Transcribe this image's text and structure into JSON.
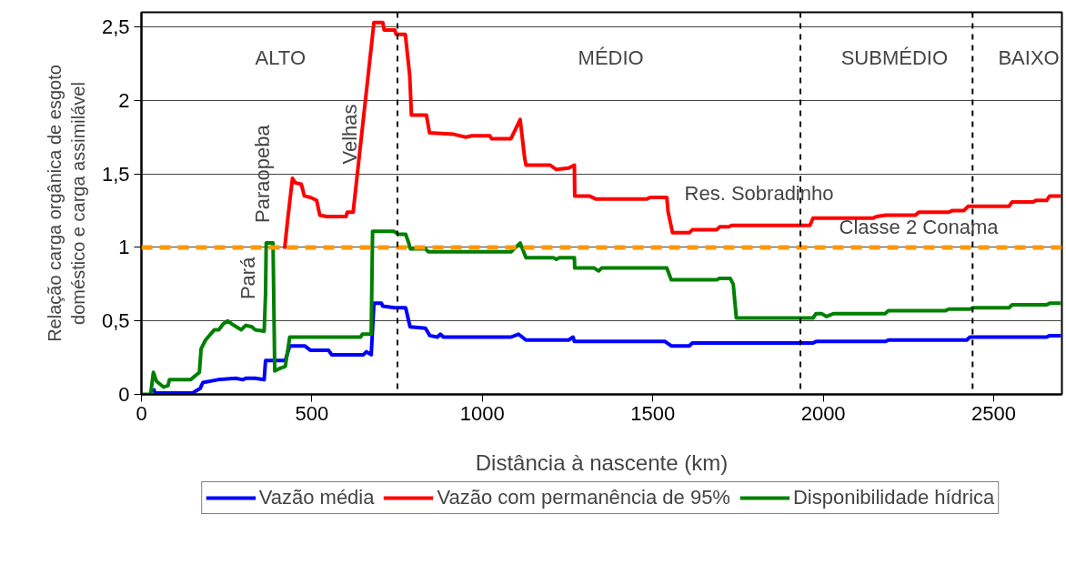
{
  "chart_data": {
    "type": "line",
    "xlabel": "Distância à nascente (km)",
    "ylabel": "Relação carga orgânica de esgoto\ndoméstico e carga assimilável",
    "xlim": [
      0,
      2700
    ],
    "xticks": [
      0,
      500,
      1000,
      1500,
      2000,
      2500
    ],
    "ylim": [
      0,
      2.6
    ],
    "yticks": [
      0,
      {
        "value": 0.5,
        "label": "0,5"
      },
      1,
      {
        "value": 1.5,
        "label": "1,5"
      },
      2,
      {
        "value": 2.5,
        "label": "2,5"
      }
    ],
    "grid": "y",
    "legend": "bottom",
    "marker": "none",
    "line_style": "solid",
    "series": [
      {
        "name": "Vazão média",
        "color": "#0000ff",
        "x": [
          35,
          40,
          150,
          172,
          180,
          224,
          276,
          298,
          306,
          333,
          360,
          364,
          422,
          435,
          479,
          496,
          549,
          558,
          651,
          660,
          674,
          682,
          704,
          708,
          743,
          775,
          788,
          833,
          846,
          868,
          877,
          886,
          1084,
          1106,
          1128,
          1253,
          1266,
          1270,
          1536,
          1554,
          1607,
          1616,
          1970,
          1979,
          2183,
          2191,
          2421,
          2430,
          2655,
          2664,
          2697
        ],
        "values": [
          0.04,
          0.01,
          0.01,
          0.04,
          0.08,
          0.1,
          0.11,
          0.1,
          0.11,
          0.11,
          0.1,
          0.23,
          0.23,
          0.33,
          0.33,
          0.3,
          0.3,
          0.27,
          0.27,
          0.29,
          0.27,
          0.62,
          0.62,
          0.6,
          0.59,
          0.59,
          0.46,
          0.45,
          0.4,
          0.39,
          0.41,
          0.39,
          0.39,
          0.41,
          0.37,
          0.37,
          0.39,
          0.36,
          0.36,
          0.33,
          0.33,
          0.35,
          0.35,
          0.36,
          0.36,
          0.37,
          0.37,
          0.39,
          0.39,
          0.4,
          0.4
        ]
      },
      {
        "name": "Vazão com permanência de 95%",
        "color": "#ff0000",
        "x": [
          420,
          429,
          443,
          451,
          469,
          478,
          496,
          514,
          523,
          543,
          600,
          604,
          621,
          682,
          708,
          712,
          743,
          747,
          774,
          787,
          792,
          836,
          845,
          916,
          952,
          969,
          1022,
          1027,
          1084,
          1111,
          1124,
          1128,
          1199,
          1217,
          1253,
          1270,
          1271,
          1314,
          1332,
          1483,
          1492,
          1541,
          1545,
          1558,
          1607,
          1616,
          1687,
          1696,
          1723,
          1731,
          1961,
          1970,
          2147,
          2156,
          2183,
          2271,
          2280,
          2368,
          2377,
          2412,
          2425,
          2545,
          2554,
          2616,
          2624,
          2655,
          2664,
          2697
        ],
        "values": [
          0.99,
          1.19,
          1.47,
          1.44,
          1.43,
          1.35,
          1.34,
          1.32,
          1.22,
          1.21,
          1.21,
          1.24,
          1.24,
          2.53,
          2.53,
          2.48,
          2.48,
          2.45,
          2.45,
          2.17,
          1.9,
          1.9,
          1.78,
          1.77,
          1.75,
          1.76,
          1.76,
          1.74,
          1.74,
          1.87,
          1.61,
          1.56,
          1.56,
          1.53,
          1.54,
          1.56,
          1.35,
          1.35,
          1.33,
          1.33,
          1.34,
          1.34,
          1.24,
          1.1,
          1.1,
          1.12,
          1.12,
          1.14,
          1.14,
          1.15,
          1.15,
          1.2,
          1.2,
          1.21,
          1.22,
          1.22,
          1.24,
          1.24,
          1.25,
          1.25,
          1.28,
          1.28,
          1.31,
          1.31,
          1.32,
          1.32,
          1.35,
          1.35
        ]
      },
      {
        "name": "Disponibilidade hídrica",
        "color": "#008000",
        "x": [
          0,
          27,
          35,
          44,
          65,
          78,
          82,
          144,
          170,
          175,
          188,
          214,
          227,
          240,
          253,
          271,
          293,
          306,
          324,
          333,
          360,
          364,
          366,
          386,
          391,
          409,
          422,
          435,
          444,
          643,
          648,
          674,
          678,
          740,
          753,
          775,
          784,
          789,
          833,
          842,
          1084,
          1111,
          1128,
          1208,
          1217,
          1226,
          1270,
          1271,
          1328,
          1341,
          1350,
          1541,
          1554,
          1687,
          1696,
          1727,
          1736,
          1745,
          1970,
          1979,
          1995,
          2009,
          2031,
          2182,
          2191,
          2359,
          2368,
          2430,
          2439,
          2545,
          2554,
          2655,
          2664,
          2697
        ],
        "values": [
          0.0,
          0.0,
          0.15,
          0.09,
          0.05,
          0.06,
          0.1,
          0.1,
          0.15,
          0.31,
          0.37,
          0.44,
          0.44,
          0.48,
          0.5,
          0.47,
          0.44,
          0.47,
          0.46,
          0.44,
          0.43,
          0.68,
          1.03,
          1.03,
          0.16,
          0.18,
          0.19,
          0.39,
          0.39,
          0.39,
          0.41,
          0.41,
          1.11,
          1.11,
          1.09,
          1.09,
          1.03,
          0.99,
          0.99,
          0.97,
          0.97,
          1.03,
          0.93,
          0.93,
          0.92,
          0.93,
          0.93,
          0.86,
          0.86,
          0.84,
          0.86,
          0.86,
          0.78,
          0.78,
          0.79,
          0.79,
          0.75,
          0.52,
          0.52,
          0.55,
          0.55,
          0.53,
          0.55,
          0.55,
          0.57,
          0.57,
          0.58,
          0.58,
          0.59,
          0.59,
          0.61,
          0.61,
          0.62,
          0.62
        ]
      }
    ],
    "ref_lines": [
      {
        "axis": "y",
        "value": 1,
        "color": "#ff9900",
        "line_style": "dashed"
      },
      {
        "axis": "x",
        "value": 751,
        "color": "#000000",
        "line_style": "dashed"
      },
      {
        "axis": "x",
        "value": 1933,
        "color": "#000000",
        "line_style": "dashed"
      },
      {
        "axis": "x",
        "value": 2438,
        "color": "#000000",
        "line_style": "dashed"
      }
    ],
    "annotations": [
      "ALTO",
      "MÉDIO",
      "SUBMÉDIO",
      "BAIXO",
      "Pará",
      "Paraopeba",
      "Velhas",
      "Res. Sobradinho",
      "Classe 2 Conama"
    ]
  }
}
